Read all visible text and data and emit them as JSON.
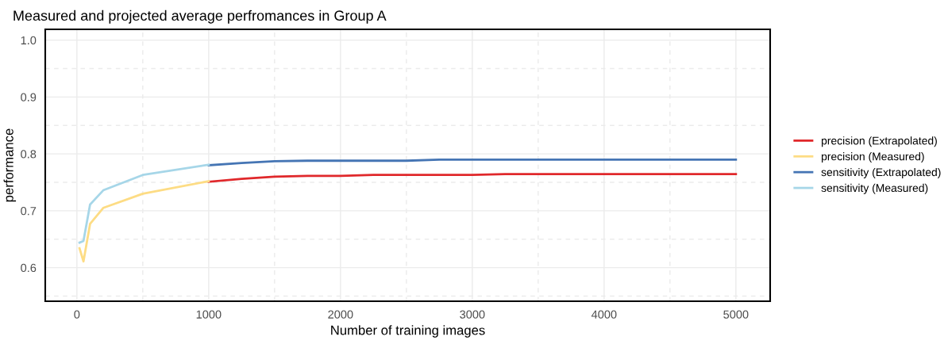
{
  "chart_data": {
    "type": "line",
    "title": "Measured and projected average perfromances in Group A",
    "xlabel": "Number of training images",
    "ylabel": "performance",
    "series": [
      {
        "name": "precision (Extrapolated)",
        "color": "#e0282b",
        "x": [
          1000,
          1250,
          1500,
          1750,
          2000,
          2250,
          2500,
          2750,
          3000,
          3250,
          3500,
          3750,
          4000,
          4250,
          4500,
          4750,
          5000
        ],
        "values": [
          0.751,
          0.756,
          0.76,
          0.7615,
          0.7615,
          0.763,
          0.763,
          0.763,
          0.763,
          0.7645,
          0.7645,
          0.7645,
          0.7645,
          0.7645,
          0.7645,
          0.7645,
          0.7645
        ]
      },
      {
        "name": "precision (Measured)",
        "color": "#fddc84",
        "x": [
          20,
          50,
          100,
          200,
          500,
          1000
        ],
        "values": [
          0.634,
          0.611,
          0.677,
          0.705,
          0.73,
          0.752
        ]
      },
      {
        "name": "sensitivity (Extrapolated)",
        "color": "#4575b4",
        "x": [
          1000,
          1250,
          1500,
          1750,
          2000,
          2250,
          2500,
          2750,
          3000,
          3250,
          3500,
          3750,
          4000,
          4250,
          4500,
          4750,
          5000
        ],
        "values": [
          0.78,
          0.784,
          0.787,
          0.788,
          0.788,
          0.788,
          0.788,
          0.79,
          0.79,
          0.79,
          0.79,
          0.79,
          0.79,
          0.79,
          0.79,
          0.79,
          0.79
        ]
      },
      {
        "name": "sensitivity (Measured)",
        "color": "#a6d6e8",
        "x": [
          20,
          50,
          100,
          200,
          500,
          1000
        ],
        "values": [
          0.644,
          0.647,
          0.711,
          0.736,
          0.763,
          0.781
        ]
      }
    ],
    "xlim": [
      -240,
      5260
    ],
    "ylim": [
      0.541,
      1.019
    ],
    "xticks": [
      0,
      1000,
      2000,
      3000,
      4000,
      5000
    ],
    "yticks": [
      {
        "value": 0.6,
        "label": "0.6"
      },
      {
        "value": 0.7,
        "label": "0.7"
      },
      {
        "value": 0.8,
        "label": "0.8"
      },
      {
        "value": 0.9,
        "label": "0.9"
      },
      {
        "value": 1.0,
        "label": "1.0"
      }
    ],
    "grid": true,
    "legend": "right",
    "marker": "none",
    "line_style": "solid"
  }
}
